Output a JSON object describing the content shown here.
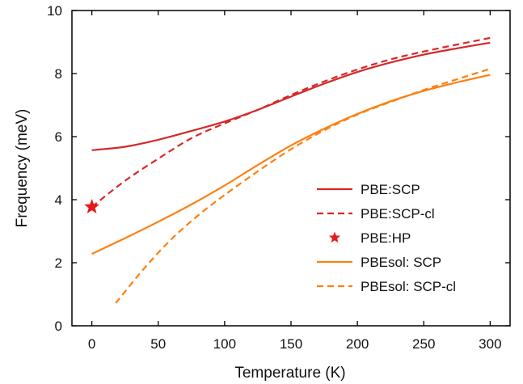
{
  "chart_data": {
    "type": "line",
    "xlabel": "Temperature (K)",
    "ylabel": "Frequency (meV)",
    "xlim": [
      -15,
      315
    ],
    "ylim": [
      0,
      10
    ],
    "xticks": [
      0,
      50,
      100,
      150,
      200,
      250,
      300
    ],
    "yticks": [
      0,
      2,
      4,
      6,
      8,
      10
    ],
    "legend_position": "center-right",
    "series": [
      {
        "name": "PBE:SCP",
        "style": "solid",
        "color": "#d62728",
        "x": [
          0,
          25,
          50,
          75,
          100,
          125,
          150,
          175,
          200,
          225,
          250,
          275,
          300
        ],
        "y": [
          5.57,
          5.68,
          5.9,
          6.18,
          6.48,
          6.85,
          7.27,
          7.68,
          8.05,
          8.35,
          8.6,
          8.8,
          8.98
        ]
      },
      {
        "name": "PBE:SCP-cl",
        "style": "dashed",
        "color": "#d62728",
        "x": [
          0,
          25,
          50,
          75,
          100,
          125,
          150,
          175,
          200,
          225,
          250,
          275,
          300
        ],
        "y": [
          3.77,
          4.6,
          5.3,
          5.95,
          6.42,
          6.85,
          7.32,
          7.75,
          8.13,
          8.45,
          8.7,
          8.92,
          9.13
        ]
      },
      {
        "name": "PBE:HP",
        "style": "marker",
        "marker": "star",
        "color": "#e41a1c",
        "x": [
          0
        ],
        "y": [
          3.77
        ]
      },
      {
        "name": "PBEsol: SCP",
        "style": "solid",
        "color": "#ff7f0e",
        "x": [
          0,
          25,
          50,
          75,
          100,
          125,
          150,
          175,
          200,
          225,
          250,
          275,
          300
        ],
        "y": [
          2.28,
          2.78,
          3.3,
          3.85,
          4.45,
          5.1,
          5.72,
          6.25,
          6.72,
          7.12,
          7.45,
          7.72,
          7.96
        ]
      },
      {
        "name": "PBEsol: SCP-cl",
        "style": "dashed",
        "color": "#ff7f0e",
        "x": [
          18,
          40,
          60,
          80,
          100,
          125,
          150,
          175,
          200,
          225,
          250,
          275,
          300
        ],
        "y": [
          0.72,
          1.85,
          2.75,
          3.5,
          4.15,
          4.9,
          5.6,
          6.2,
          6.7,
          7.1,
          7.48,
          7.82,
          8.15
        ]
      }
    ]
  }
}
